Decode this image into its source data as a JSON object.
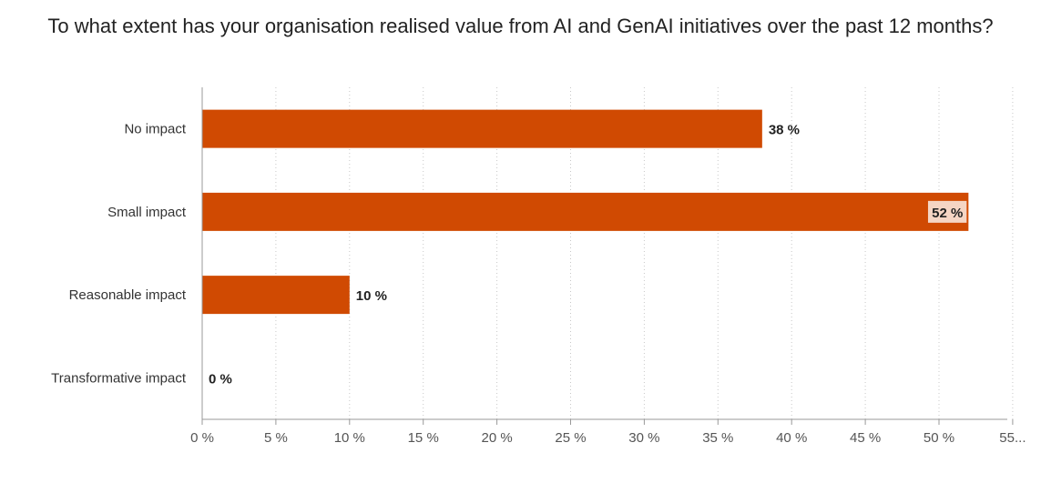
{
  "chart_data": {
    "type": "bar",
    "orientation": "horizontal",
    "title": "To what extent has your organisation realised value from AI and GenAI initiatives over the past 12 months?",
    "categories": [
      "No impact",
      "Small impact",
      "Reasonable impact",
      "Transformative impact"
    ],
    "values": [
      38,
      52,
      10,
      0
    ],
    "data_labels": [
      "38 %",
      "52 %",
      "10 %",
      "0 %"
    ],
    "x_ticks": [
      0,
      5,
      10,
      15,
      20,
      25,
      30,
      35,
      40,
      45,
      50,
      55
    ],
    "x_tick_labels": [
      "0 %",
      "5 %",
      "10 %",
      "15 %",
      "20 %",
      "25 %",
      "30 %",
      "35 %",
      "40 %",
      "45 %",
      "50 %",
      "55..."
    ],
    "xlim": [
      0,
      55
    ],
    "xlabel": "",
    "ylabel": "",
    "grid": "vertical dotted",
    "legend": "none",
    "bar_color": "#d04a02",
    "inside_label_bg": "#f5d5c4"
  }
}
